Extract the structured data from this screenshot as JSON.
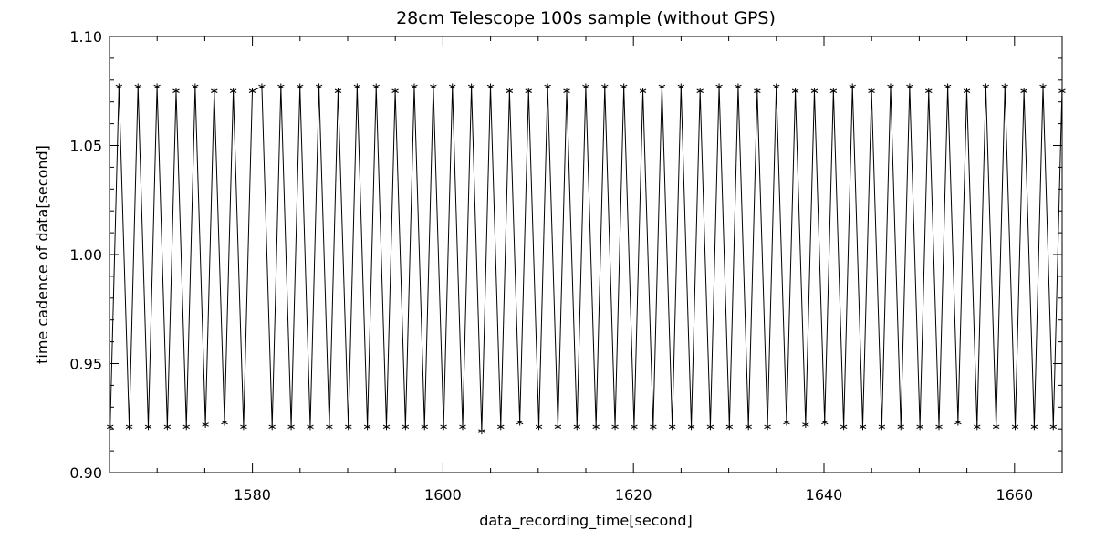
{
  "chart_data": {
    "type": "line",
    "title": "28cm Telescope 100s sample (without GPS)",
    "xlabel": "data_recording_time[second]",
    "ylabel": "time cadence of data[second]",
    "xlim": [
      1565,
      1665
    ],
    "ylim": [
      0.9,
      1.1
    ],
    "x_ticks": [
      1580,
      1600,
      1620,
      1640,
      1660
    ],
    "x_tick_labels": [
      "1580",
      "1600",
      "1620",
      "1640",
      "1660"
    ],
    "y_ticks": [
      0.9,
      0.95,
      1.0,
      1.05,
      1.1
    ],
    "y_tick_labels": [
      "0.90",
      "0.95",
      "1.00",
      "1.05",
      "1.10"
    ],
    "grid": false,
    "marker": "asterisk",
    "line_color": "#000000",
    "series": [
      {
        "x": [
          1565.07,
          1565.99,
          1567.07,
          1567.99,
          1569.07,
          1569.99,
          1571.07,
          1571.99,
          1573.07,
          1573.99,
          1575.07,
          1575.99,
          1577.07,
          1577.99,
          1579.07,
          1579.99,
          1580.99,
          1582.07,
          1582.99,
          1584.07,
          1584.99,
          1586.07,
          1586.99,
          1588.07,
          1588.99,
          1590.07,
          1590.99,
          1592.07,
          1592.99,
          1594.07,
          1594.99,
          1596.07,
          1596.99,
          1598.07,
          1598.99,
          1600.07,
          1600.99,
          1602.07,
          1602.99,
          1604.07,
          1604.99,
          1606.07,
          1606.99,
          1608.07,
          1608.99,
          1610.07,
          1610.99,
          1612.07,
          1612.99,
          1614.07,
          1614.99,
          1616.07,
          1616.99,
          1618.07,
          1618.99,
          1620.07,
          1620.99,
          1622.07,
          1622.99,
          1624.07,
          1624.99,
          1626.07,
          1626.99,
          1628.07,
          1628.99,
          1630.07,
          1630.99,
          1632.07,
          1632.99,
          1634.07,
          1634.99,
          1636.07,
          1636.99,
          1638.07,
          1638.99,
          1640.07,
          1640.99,
          1642.07,
          1642.99,
          1644.07,
          1644.99,
          1646.07,
          1646.99,
          1648.07,
          1648.99,
          1650.07,
          1650.99,
          1652.07,
          1652.99,
          1654.07,
          1654.99,
          1656.07,
          1656.99,
          1658.07,
          1658.99,
          1660.07,
          1660.99,
          1662.07,
          1662.99,
          1664.07,
          1664.99
        ],
        "values": [
          0.921,
          1.077,
          0.921,
          1.077,
          0.921,
          1.077,
          0.921,
          1.075,
          0.921,
          1.077,
          0.922,
          1.075,
          0.923,
          1.075,
          0.921,
          1.075,
          1.077,
          0.921,
          1.077,
          0.921,
          1.077,
          0.921,
          1.077,
          0.921,
          1.075,
          0.921,
          1.077,
          0.921,
          1.077,
          0.921,
          1.075,
          0.921,
          1.077,
          0.921,
          1.077,
          0.921,
          1.077,
          0.921,
          1.077,
          0.919,
          1.077,
          0.921,
          1.075,
          0.923,
          1.075,
          0.921,
          1.077,
          0.921,
          1.075,
          0.921,
          1.077,
          0.921,
          1.077,
          0.921,
          1.077,
          0.921,
          1.075,
          0.921,
          1.077,
          0.921,
          1.077,
          0.921,
          1.075,
          0.921,
          1.077,
          0.921,
          1.077,
          0.921,
          1.075,
          0.921,
          1.077,
          0.923,
          1.075,
          0.922,
          1.075,
          0.923,
          1.075,
          0.921,
          1.077,
          0.921,
          1.075,
          0.921,
          1.077,
          0.921,
          1.077,
          0.921,
          1.075,
          0.921,
          1.077,
          0.923,
          1.075,
          0.921,
          1.077,
          0.921,
          1.077,
          0.921,
          1.075,
          0.921,
          1.077,
          0.921,
          1.075
        ]
      }
    ]
  }
}
